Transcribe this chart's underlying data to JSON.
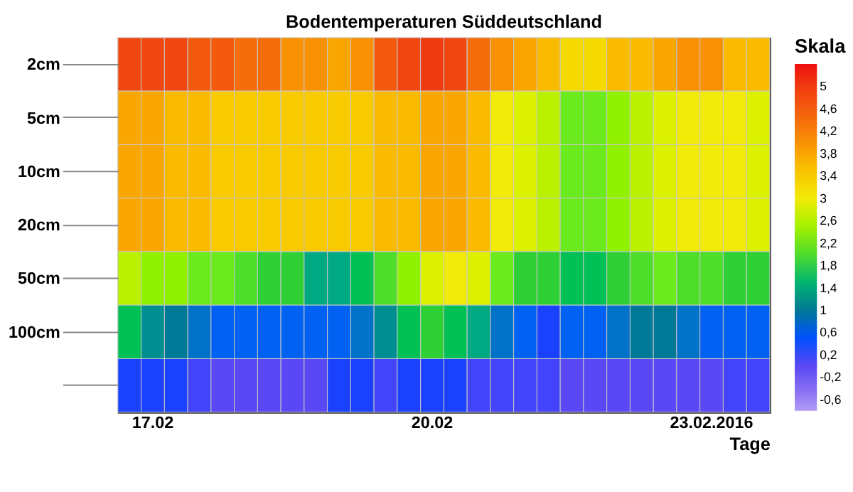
{
  "chart_data": {
    "type": "heatmap",
    "title": "Bodentemperaturen Süddeutschland",
    "xlabel": "Tage",
    "legend_title": "Skala",
    "categories": [
      null,
      "17.02",
      null,
      null,
      null,
      null,
      null,
      null,
      null,
      null,
      null,
      null,
      null,
      "20.02",
      null,
      null,
      null,
      null,
      null,
      null,
      null,
      null,
      null,
      null,
      null,
      "23.02.2016",
      null,
      null
    ],
    "y_categories": [
      "2cm",
      "5cm",
      "10cm",
      "20cm",
      "50cm",
      "100cm",
      null
    ],
    "cells": [
      [
        4.8,
        4.8,
        4.8,
        4.6,
        4.6,
        4.4,
        4.4,
        4.0,
        4.0,
        3.8,
        4.0,
        4.6,
        4.8,
        5.0,
        4.8,
        4.4,
        4.0,
        3.8,
        3.6,
        3.2,
        3.2,
        3.6,
        3.6,
        3.8,
        4.0,
        4.0,
        3.6,
        3.6
      ],
      [
        3.8,
        3.8,
        3.6,
        3.6,
        3.4,
        3.4,
        3.4,
        3.4,
        3.4,
        3.4,
        3.4,
        3.6,
        3.6,
        3.8,
        3.8,
        3.6,
        3.0,
        2.8,
        2.6,
        2.2,
        2.2,
        2.4,
        2.6,
        2.8,
        3.0,
        3.0,
        3.0,
        2.8
      ],
      [
        3.8,
        3.8,
        3.6,
        3.6,
        3.4,
        3.4,
        3.4,
        3.4,
        3.4,
        3.4,
        3.4,
        3.6,
        3.6,
        3.8,
        3.8,
        3.6,
        3.0,
        2.8,
        2.6,
        2.2,
        2.2,
        2.4,
        2.6,
        2.8,
        3.0,
        3.0,
        3.0,
        2.8
      ],
      [
        3.8,
        3.8,
        3.6,
        3.6,
        3.4,
        3.4,
        3.4,
        3.4,
        3.4,
        3.4,
        3.4,
        3.6,
        3.6,
        3.8,
        3.8,
        3.6,
        3.0,
        2.8,
        2.6,
        2.2,
        2.2,
        2.4,
        2.6,
        2.8,
        3.0,
        3.0,
        3.0,
        2.8
      ],
      [
        2.6,
        2.4,
        2.4,
        2.2,
        2.2,
        2.0,
        1.8,
        1.8,
        1.4,
        1.4,
        1.6,
        2.0,
        2.4,
        2.8,
        3.0,
        2.8,
        2.2,
        1.8,
        1.8,
        1.6,
        1.6,
        1.8,
        2.0,
        2.2,
        2.0,
        2.0,
        1.8,
        1.8
      ],
      [
        1.6,
        1.2,
        1.0,
        0.8,
        0.6,
        0.6,
        0.6,
        0.6,
        0.6,
        0.6,
        0.8,
        1.2,
        1.6,
        1.8,
        1.6,
        1.4,
        0.8,
        0.6,
        0.4,
        0.6,
        0.6,
        0.8,
        1.0,
        1.0,
        0.8,
        0.6,
        0.6,
        0.6
      ],
      [
        0.4,
        0.4,
        0.4,
        0.2,
        0.0,
        0.0,
        0.0,
        0.0,
        0.0,
        0.4,
        0.4,
        0.2,
        0.4,
        0.4,
        0.4,
        0.2,
        0.2,
        0.2,
        0.2,
        0.0,
        0.0,
        0.0,
        0.0,
        0.0,
        0.0,
        0.0,
        0.2,
        0.2
      ]
    ],
    "colors": [
      "#b09cf5",
      "#6a4cf0",
      "#0040ff",
      "#167a8a",
      "#12c83a",
      "#78f010",
      "#f0f010",
      "#f8c000",
      "#f88010",
      "#f04810",
      "#f01010"
    ],
    "clim": [
      -0.8,
      5.4
    ],
    "cticks": [
      5,
      {
        "value": 4.6,
        "label": "4,6"
      },
      {
        "value": 4.2,
        "label": "4,2"
      },
      {
        "value": 3.8,
        "label": "3,8"
      },
      {
        "value": 3.4,
        "label": "3,4"
      },
      3,
      {
        "value": 2.6,
        "label": "2,6"
      },
      {
        "value": 2.2,
        "label": "2,2"
      },
      {
        "value": 1.8,
        "label": "1,8"
      },
      {
        "value": 1.4,
        "label": "1,4"
      },
      1,
      {
        "value": 0.6,
        "label": "0,6"
      },
      {
        "value": 0.2,
        "label": "0,2"
      },
      {
        "value": -0.2,
        "label": "-0,2"
      },
      {
        "value": -0.6,
        "label": "-0,6"
      }
    ],
    "grid": false
  }
}
